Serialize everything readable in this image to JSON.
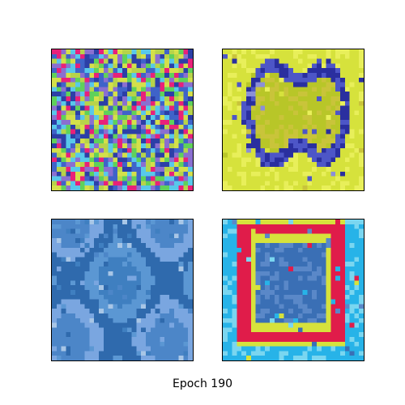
{
  "caption": "Epoch 190",
  "panels": [
    {
      "id": "top-left",
      "palette": [
        "#e8217a",
        "#5fd15a",
        "#3f63c9",
        "#b7d34a",
        "#8a6fd0",
        "#d4e04a",
        "#2c3fa7",
        "#58c8ea"
      ]
    },
    {
      "id": "top-right",
      "palette": [
        "#b8c628",
        "#d6e23c",
        "#4d56c7",
        "#8b8fd8",
        "#2a2f9f",
        "#e8ef5a",
        "#c9c43a"
      ]
    },
    {
      "id": "bottom-left",
      "palette": [
        "#3f7fc0",
        "#5b97d3",
        "#2f6aad",
        "#7aa6e0",
        "#4c86c8",
        "#a8c6e6"
      ]
    },
    {
      "id": "bottom-right",
      "palette": [
        "#27b3e8",
        "#5a88c8",
        "#3a6fb5",
        "#e01c4a",
        "#d6e23c",
        "#7ad6f0"
      ]
    }
  ]
}
